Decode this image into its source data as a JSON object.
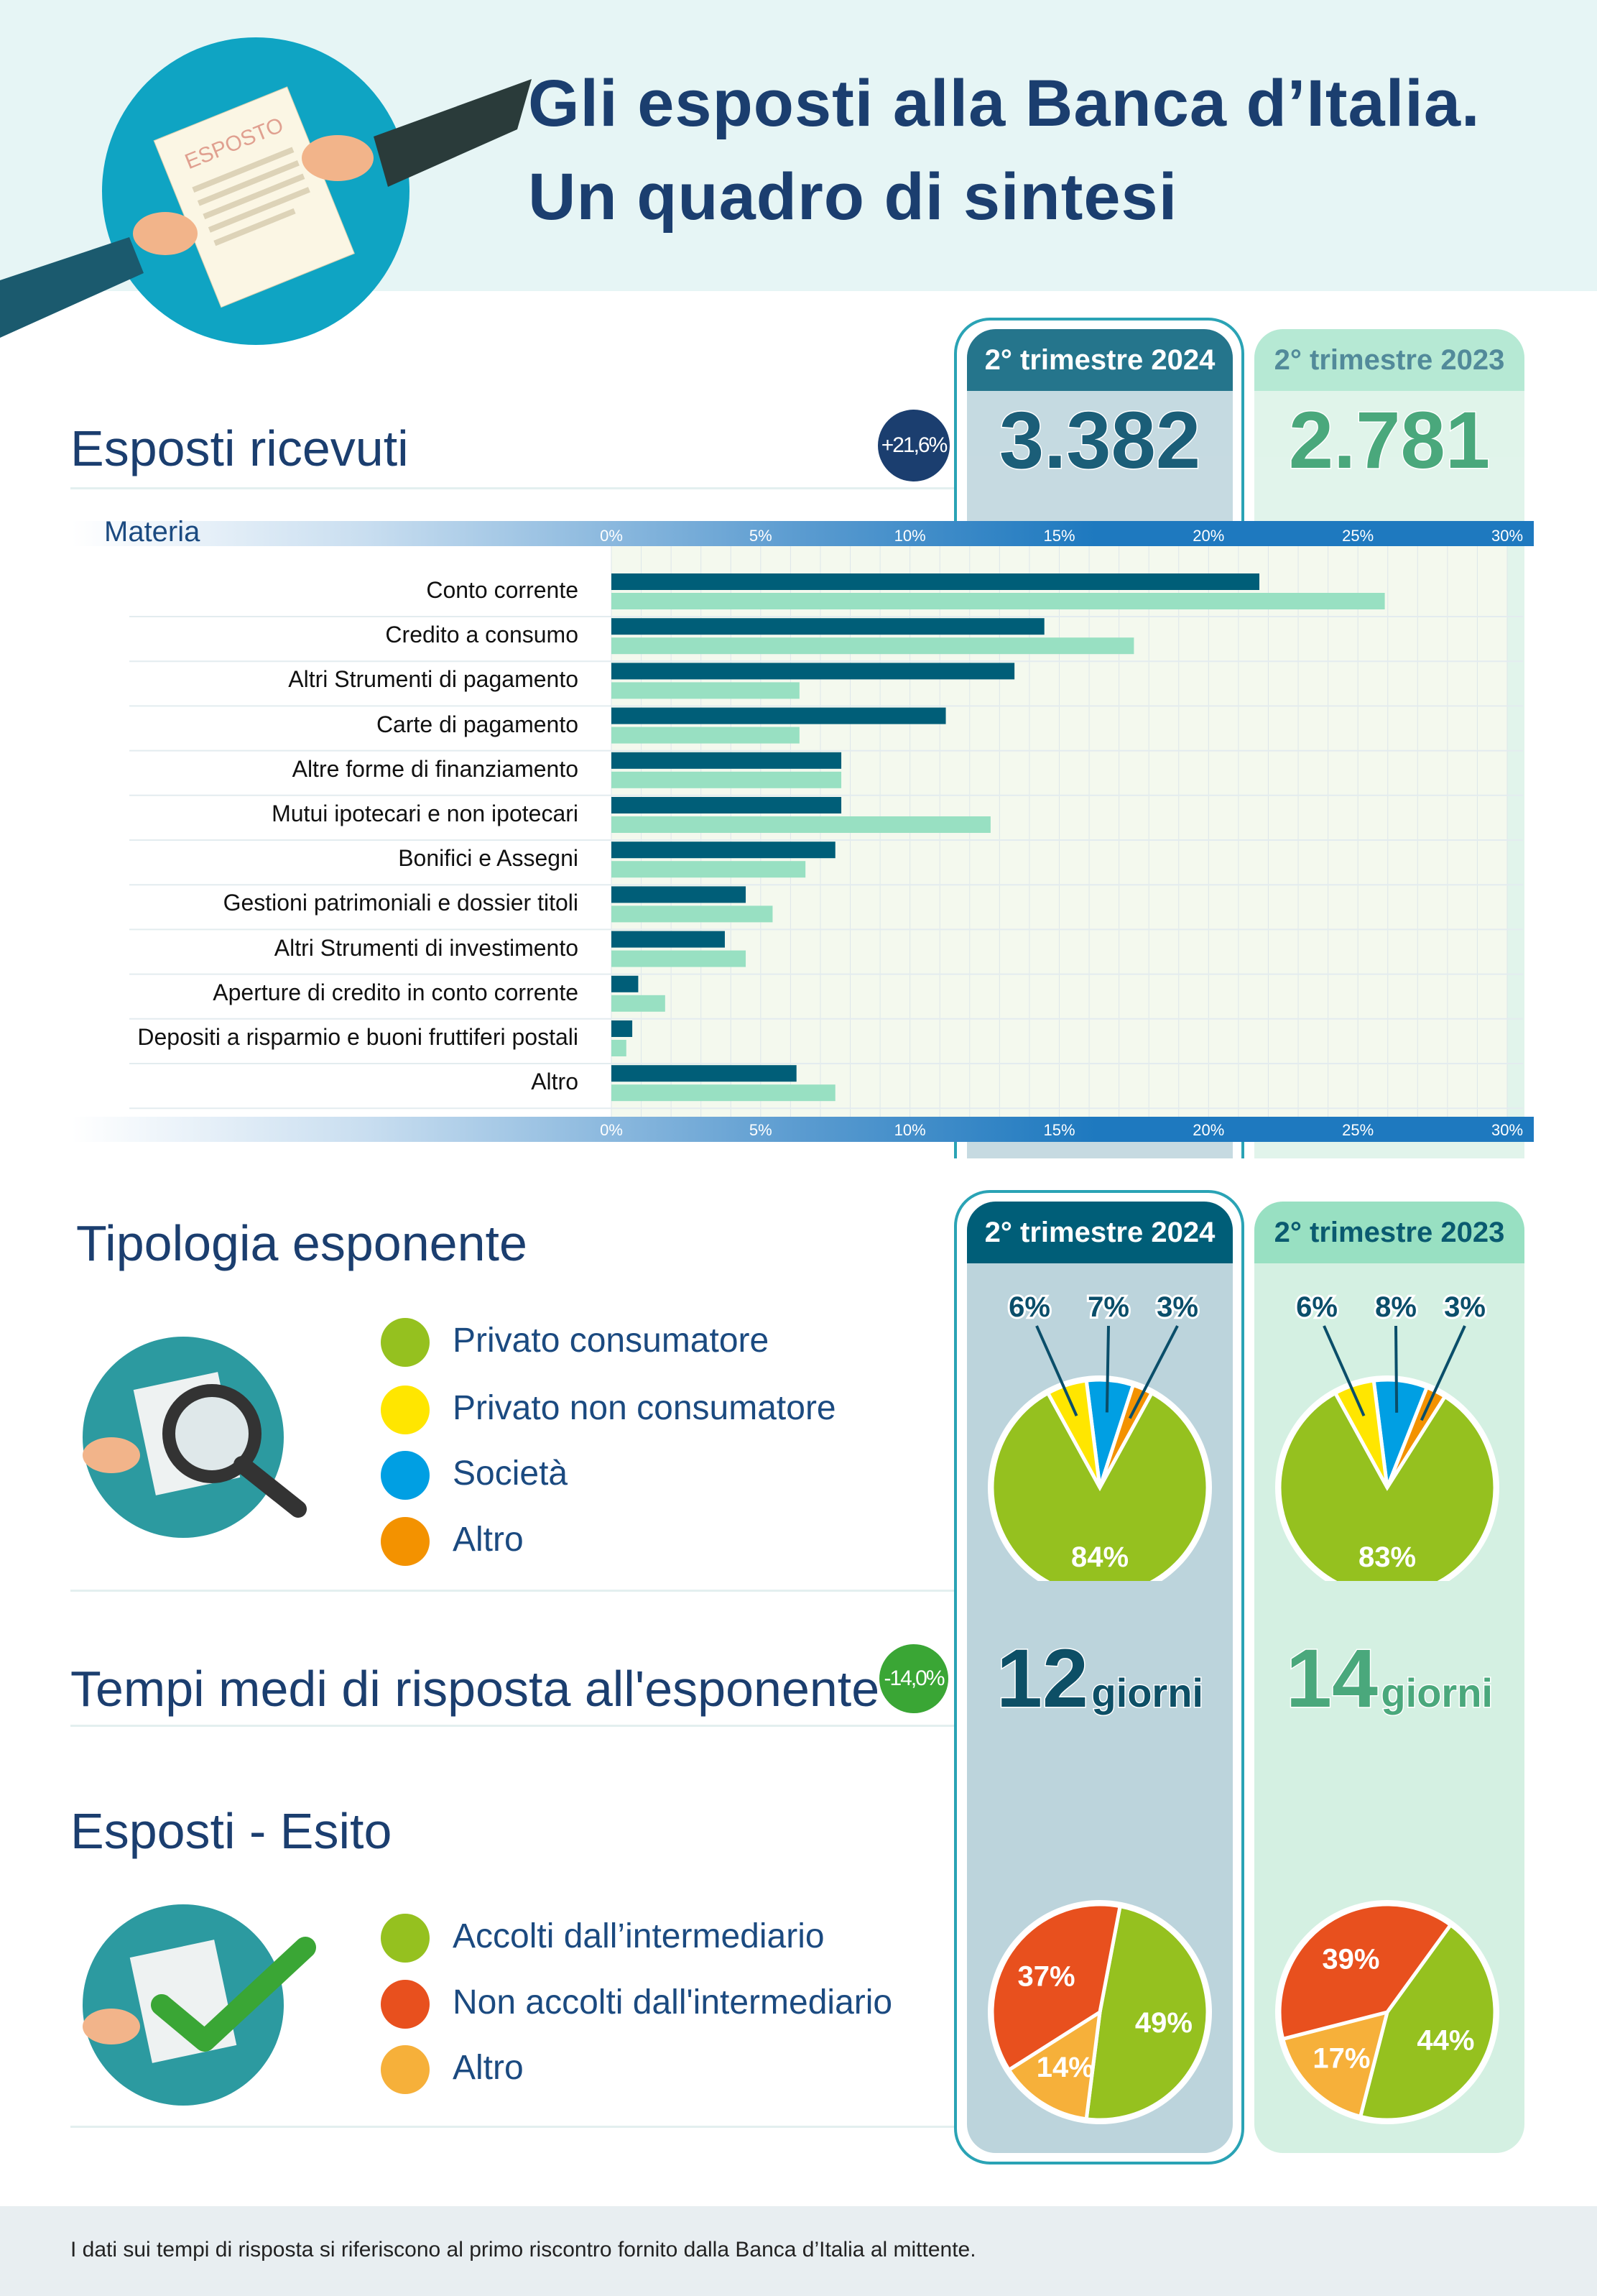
{
  "header": {
    "title_line1": "Gli esposti alla Banca d’Italia.",
    "title_line2": "Un quadro di sintesi",
    "illustration_text": "ESPOSTO"
  },
  "periods": {
    "current": "2° trimestre 2024",
    "previous": "2° trimestre 2023"
  },
  "esposti_ricevuti": {
    "title": "Esposti ricevuti",
    "change_badge": "+21,6%",
    "current": "3.382",
    "previous": "2.781",
    "badge_color": "#1b3e6f"
  },
  "chart_data": {
    "type": "bar",
    "orientation": "horizontal",
    "xlabel": "Materia",
    "xlim": [
      0,
      30
    ],
    "ticks": [
      "0%",
      "5%",
      "10%",
      "15%",
      "20%",
      "25%",
      "30%"
    ],
    "grid": true,
    "categories": [
      "Conto corrente",
      "Credito a consumo",
      "Altri Strumenti di pagamento",
      "Carte di pagamento",
      "Altre forme di finanziamento",
      "Mutui ipotecari e non ipotecari",
      "Bonifici e Assegni",
      "Gestioni patrimoniali e dossier titoli",
      "Altri Strumenti di investimento",
      "Aperture di credito in conto corrente",
      "Depositi a risparmio e buoni fruttiferi postali",
      "Altro"
    ],
    "series": [
      {
        "name": "2° trimestre 2024",
        "color": "#005e78",
        "values": [
          21.7,
          14.5,
          13.5,
          11.2,
          7.7,
          7.7,
          7.5,
          4.5,
          3.8,
          0.9,
          0.7,
          6.2
        ]
      },
      {
        "name": "2° trimestre 2023",
        "color": "#98e0c2",
        "values": [
          25.9,
          17.5,
          6.3,
          6.3,
          7.7,
          12.7,
          6.5,
          5.4,
          4.5,
          1.8,
          0.5,
          7.5
        ]
      }
    ]
  },
  "tipologia": {
    "title": "Tipologia esponente",
    "legend": [
      {
        "label": "Privato consumatore",
        "color": "#95c11f"
      },
      {
        "label": "Privato non consumatore",
        "color": "#ffe600"
      },
      {
        "label": "Società",
        "color": "#009fe3"
      },
      {
        "label": "Altro",
        "color": "#f39200"
      }
    ],
    "pie_2024": {
      "values": [
        84,
        6,
        7,
        3
      ],
      "labels": [
        "84%",
        "6%",
        "7%",
        "3%"
      ]
    },
    "pie_2023": {
      "values": [
        83,
        6,
        8,
        3
      ],
      "labels": [
        "83%",
        "6%",
        "8%",
        "3%"
      ]
    }
  },
  "tempi": {
    "title": "Tempi medi di risposta all'esponente",
    "change_badge": "-14,0%",
    "badge_color": "#3aa635",
    "current_value": "12",
    "previous_value": "14",
    "unit": "giorni"
  },
  "esito": {
    "title": "Esposti - Esito",
    "legend": [
      {
        "label": "Accolti dall’intermediario",
        "color": "#95c11f"
      },
      {
        "label": "Non accolti dall'intermediario",
        "color": "#e8501e"
      },
      {
        "label": "Altro",
        "color": "#f6b03a"
      }
    ],
    "pie_2024": {
      "values": [
        49,
        37,
        14
      ],
      "labels": [
        "49%",
        "37%",
        "14%"
      ]
    },
    "pie_2023": {
      "values": [
        44,
        39,
        17
      ],
      "labels": [
        "44%",
        "39%",
        "17%"
      ]
    }
  },
  "footer": {
    "note": "I dati sui tempi di risposta si riferiscono al primo riscontro fornito dalla Banca d’Italia al mittente."
  }
}
